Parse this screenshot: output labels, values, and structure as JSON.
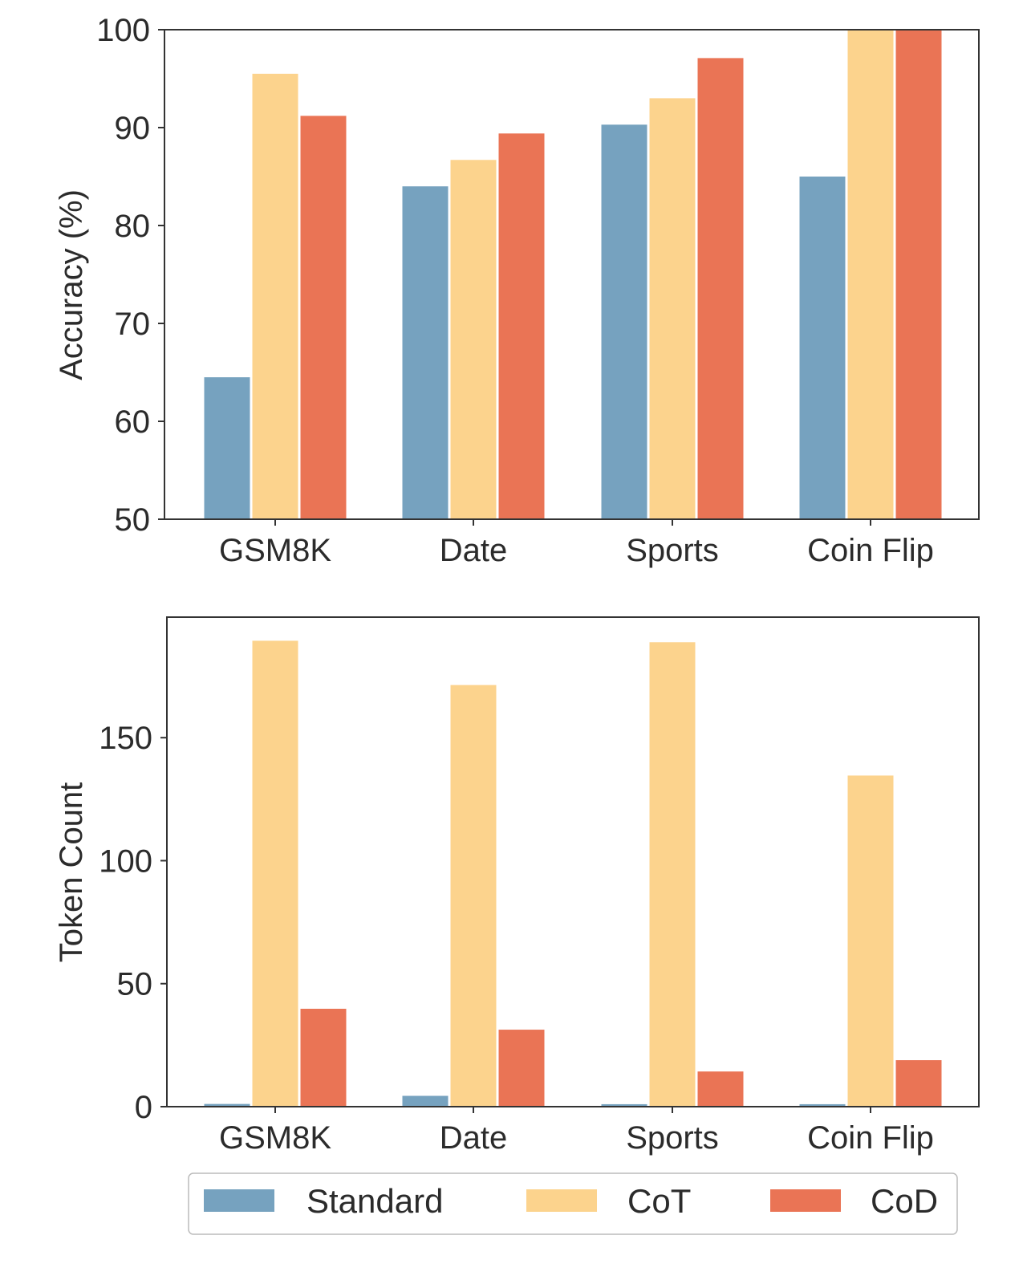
{
  "chart_data": [
    {
      "type": "bar",
      "title": "",
      "xlabel": "",
      "ylabel": "Accuracy (%)",
      "ylim": [
        50,
        100
      ],
      "yticks": [
        "50",
        "60",
        "70",
        "80",
        "90",
        "100"
      ],
      "categories": [
        "GSM8K",
        "Date",
        "Sports",
        "Coin Flip"
      ],
      "series": [
        {
          "name": "Standard",
          "color": "#76a2bf",
          "values": [
            64.5,
            84.0,
            90.3,
            85.0
          ]
        },
        {
          "name": "CoT",
          "color": "#fcd38d",
          "values": [
            95.5,
            86.7,
            93.0,
            100.0
          ]
        },
        {
          "name": "CoD",
          "color": "#ea7455",
          "values": [
            91.2,
            89.4,
            97.1,
            100.0
          ]
        }
      ],
      "grid": false
    },
    {
      "type": "bar",
      "title": "",
      "xlabel": "",
      "ylabel": "Token Count",
      "ylim": [
        0,
        199
      ],
      "yticks": [
        "0",
        "50",
        "100",
        "150"
      ],
      "categories": [
        "GSM8K",
        "Date",
        "Sports",
        "Coin Flip"
      ],
      "series": [
        {
          "name": "Standard",
          "color": "#76a2bf",
          "values": [
            1.1,
            4.4,
            1.0,
            1.0
          ]
        },
        {
          "name": "CoT",
          "color": "#fcd38d",
          "values": [
            189.4,
            171.4,
            188.8,
            134.6
          ]
        },
        {
          "name": "CoD",
          "color": "#ea7455",
          "values": [
            39.8,
            31.3,
            14.3,
            18.9
          ]
        }
      ],
      "grid": false
    }
  ],
  "legend": {
    "placement": "bottom-center",
    "items": [
      {
        "label": "Standard",
        "color": "#76a2bf"
      },
      {
        "label": "CoT",
        "color": "#fcd38d"
      },
      {
        "label": "CoD",
        "color": "#ea7455"
      }
    ]
  }
}
